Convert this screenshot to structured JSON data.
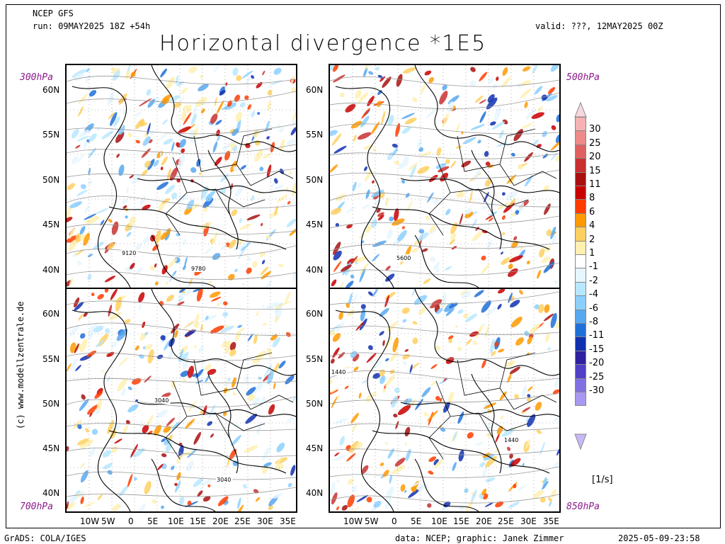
{
  "header": {
    "model": "NCEP GFS",
    "run": "run: 09MAY2025 18Z +54h",
    "valid": "valid: ???, 12MAY2025 00Z",
    "title": "Horizontal divergence *1E5"
  },
  "panels": [
    {
      "level": "300hPa",
      "contour_labels": [
        "9120",
        "9780"
      ]
    },
    {
      "level": "500hPa",
      "contour_labels": [
        "5600"
      ]
    },
    {
      "level": "700hPa",
      "contour_labels": [
        "3040",
        "3040"
      ]
    },
    {
      "level": "850hPa",
      "contour_labels": [
        "1440",
        "1440"
      ]
    }
  ],
  "lat_labels": [
    "60N",
    "55N",
    "50N",
    "45N",
    "40N"
  ],
  "lon_labels": [
    "10W",
    "5W",
    "0",
    "5E",
    "10E",
    "15E",
    "20E",
    "25E",
    "30E",
    "35E"
  ],
  "colorbar": {
    "labels": [
      "30",
      "25",
      "20",
      "15",
      "11",
      "8",
      "6",
      "4",
      "2",
      "1",
      "-1",
      "-2",
      "-4",
      "-6",
      "-8",
      "-11",
      "-15",
      "-20",
      "-25",
      "-30"
    ],
    "colors": [
      "#f5b3b3",
      "#ee8a8a",
      "#e06060",
      "#c83030",
      "#a81010",
      "#c80000",
      "#ff3c00",
      "#ff9a00",
      "#ffd060",
      "#fff0b0",
      "#ffffff",
      "#e6f6ff",
      "#b8e8ff",
      "#8ccfff",
      "#58a8f0",
      "#2070d8",
      "#1030b0",
      "#3020a0",
      "#5040c8",
      "#8070e0",
      "#a898f0"
    ],
    "arrow_top_color": "#f8d8e0",
    "arrow_bottom_color": "#c8b8f8",
    "unit": "[1/s]"
  },
  "watermark": "(c) www.modellzentrale.de",
  "footer": {
    "left": "GrADS: COLA/IGES",
    "center": "data: NCEP; graphic: Janek Zimmer",
    "right": "2025-05-09-23:58"
  }
}
